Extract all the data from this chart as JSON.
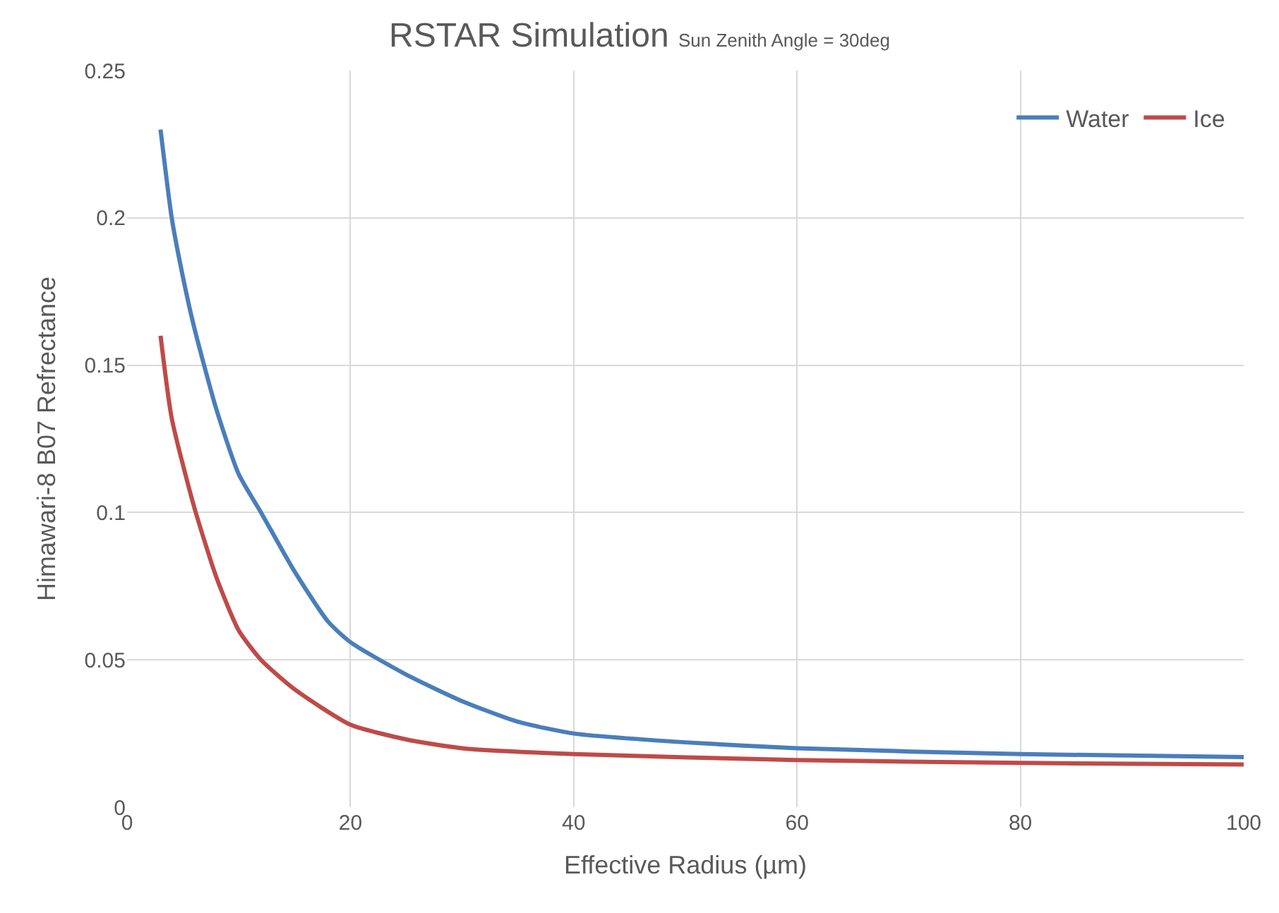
{
  "chart_data": {
    "type": "line",
    "title": "RSTAR Simulation",
    "subtitle": "Sun Zenith Angle = 30deg",
    "xlabel": "Effective Radius (µm)",
    "ylabel": "Himawari-8 B07 Refrectance",
    "xlim": [
      0,
      100
    ],
    "xticks": [
      0,
      20,
      40,
      60,
      80,
      100
    ],
    "ylim": [
      0,
      0.25
    ],
    "yticks": [
      0,
      0.05,
      0.1,
      0.15,
      0.2,
      0.25
    ],
    "grid": true,
    "legend": "top right",
    "marker": "none",
    "line_style": "solid",
    "series": [
      {
        "name": "Water",
        "color": "#4a7ebb",
        "x": [
          3,
          4,
          5,
          6,
          8,
          10,
          12,
          15,
          18,
          20,
          25,
          30,
          35,
          40,
          50,
          60,
          80,
          100
        ],
        "values": [
          0.23,
          0.2,
          0.18,
          0.163,
          0.135,
          0.113,
          0.1,
          0.08,
          0.063,
          0.056,
          0.045,
          0.036,
          0.029,
          0.025,
          0.022,
          0.02,
          0.018,
          0.017
        ]
      },
      {
        "name": "Ice",
        "color": "#be4b48",
        "x": [
          3,
          4,
          6,
          8,
          10,
          12,
          15,
          20,
          25,
          30,
          40,
          60,
          80,
          100
        ],
        "values": [
          0.16,
          0.132,
          0.102,
          0.078,
          0.06,
          0.05,
          0.04,
          0.028,
          0.023,
          0.02,
          0.018,
          0.016,
          0.015,
          0.0145
        ]
      }
    ]
  }
}
